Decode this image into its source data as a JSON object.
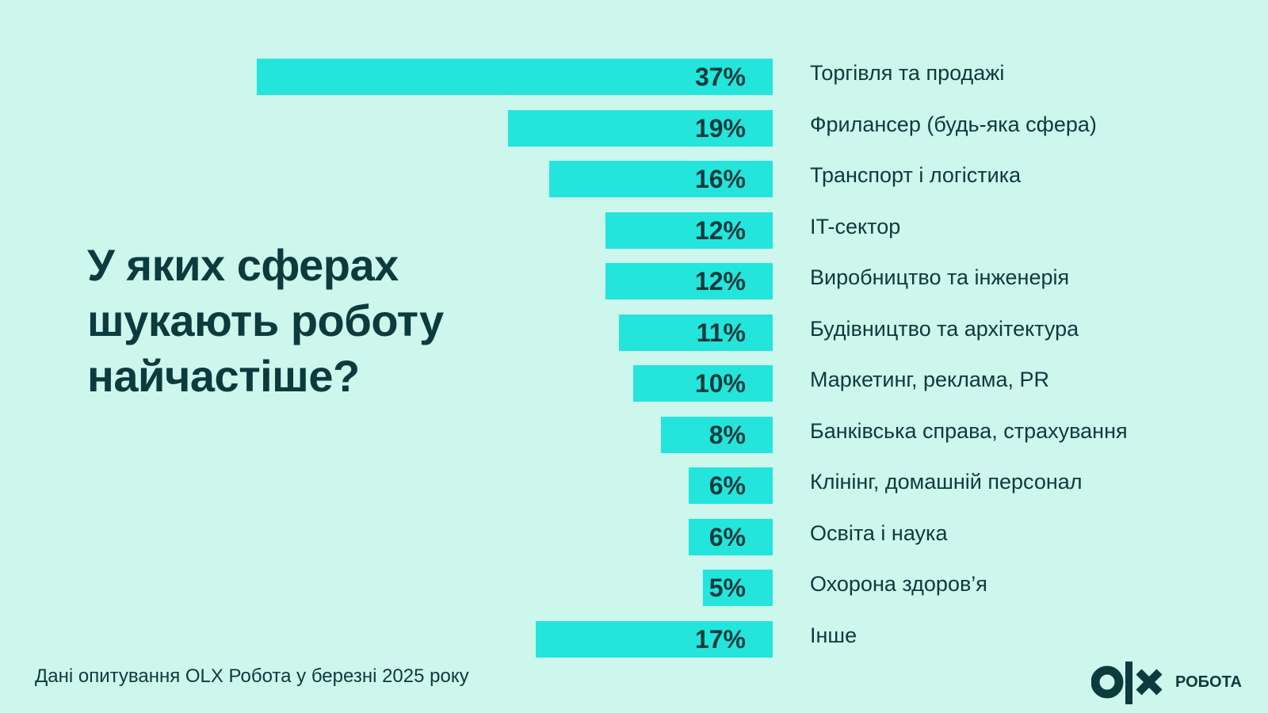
{
  "chart_data": {
    "type": "bar",
    "orientation": "horizontal",
    "title": "У яких сферах шукають роботу найчастіше?",
    "categories": [
      "Торгівля та продажі",
      "Фрилансер (будь-яка сфера)",
      "Транспорт і логістика",
      "IT-сектор",
      "Виробництво та інженерія",
      "Будівництво та архітектура",
      "Маркетинг, реклама, PR",
      "Банківська справа, страхування",
      "Клінінг, домашній персонал",
      "Освіта і наука",
      "Охорона здоров’я",
      "Інше"
    ],
    "values": [
      37,
      19,
      16,
      12,
      12,
      11,
      10,
      8,
      6,
      6,
      5,
      17
    ],
    "value_labels": [
      "37%",
      "19%",
      "16%",
      "12%",
      "12%",
      "11%",
      "10%",
      "8%",
      "6%",
      "6%",
      "5%",
      "17%"
    ],
    "unit": "%",
    "xlim": [
      0,
      37
    ],
    "grid": false,
    "colors": {
      "bar": "#23e5db",
      "text": "#0b3b3c",
      "background": "#cdf6ec"
    }
  },
  "footer": {
    "source": "Дані опитування OLX Робота у березні 2025 року"
  },
  "logo": {
    "brand": "OLX",
    "text": "РОБОТА"
  }
}
